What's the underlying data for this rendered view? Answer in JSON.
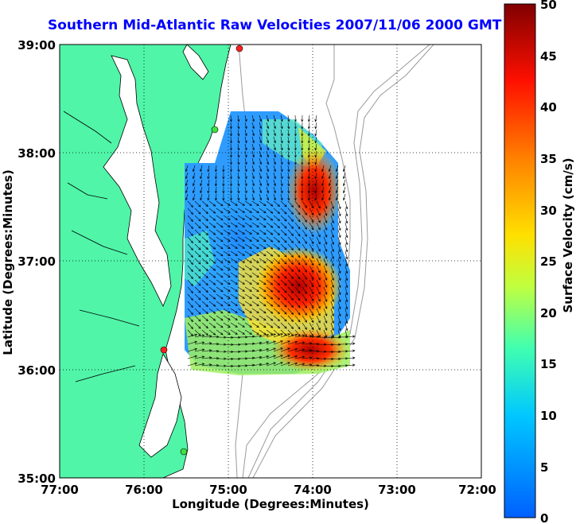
{
  "title": "Southern Mid-Atlantic Raw Velocities 2007/11/06 2000 GMT",
  "x_axis": {
    "label": "Longitude (Degrees:Minutes)",
    "ticks": [
      "77:00",
      "76:00",
      "75:00",
      "74:00",
      "73:00",
      "72:00"
    ]
  },
  "y_axis": {
    "label": "Latitude (Degrees:Minutes)",
    "ticks": [
      "39:00",
      "38:00",
      "37:00",
      "36:00",
      "35:00"
    ]
  },
  "colorbar": {
    "label": "Surface Velocity (cm/s)",
    "ticks": [
      "50",
      "45",
      "40",
      "35",
      "30",
      "25",
      "20",
      "15",
      "10",
      "5",
      "0"
    ],
    "range": [
      0,
      50
    ],
    "colors": [
      "#0060ff",
      "#00c8ff",
      "#40ffb0",
      "#c0ff40",
      "#ffe000",
      "#ff8000",
      "#ff1000",
      "#800000"
    ]
  },
  "map": {
    "land_color": "#50f5a8",
    "water_color": "#ffffff",
    "bathymetry_color": "#9a9a9a",
    "grid": true,
    "stations": [
      {
        "color": "#ff2020"
      },
      {
        "color": "#40e040"
      },
      {
        "color": "#ff2020"
      },
      {
        "color": "#40e040"
      }
    ]
  }
}
